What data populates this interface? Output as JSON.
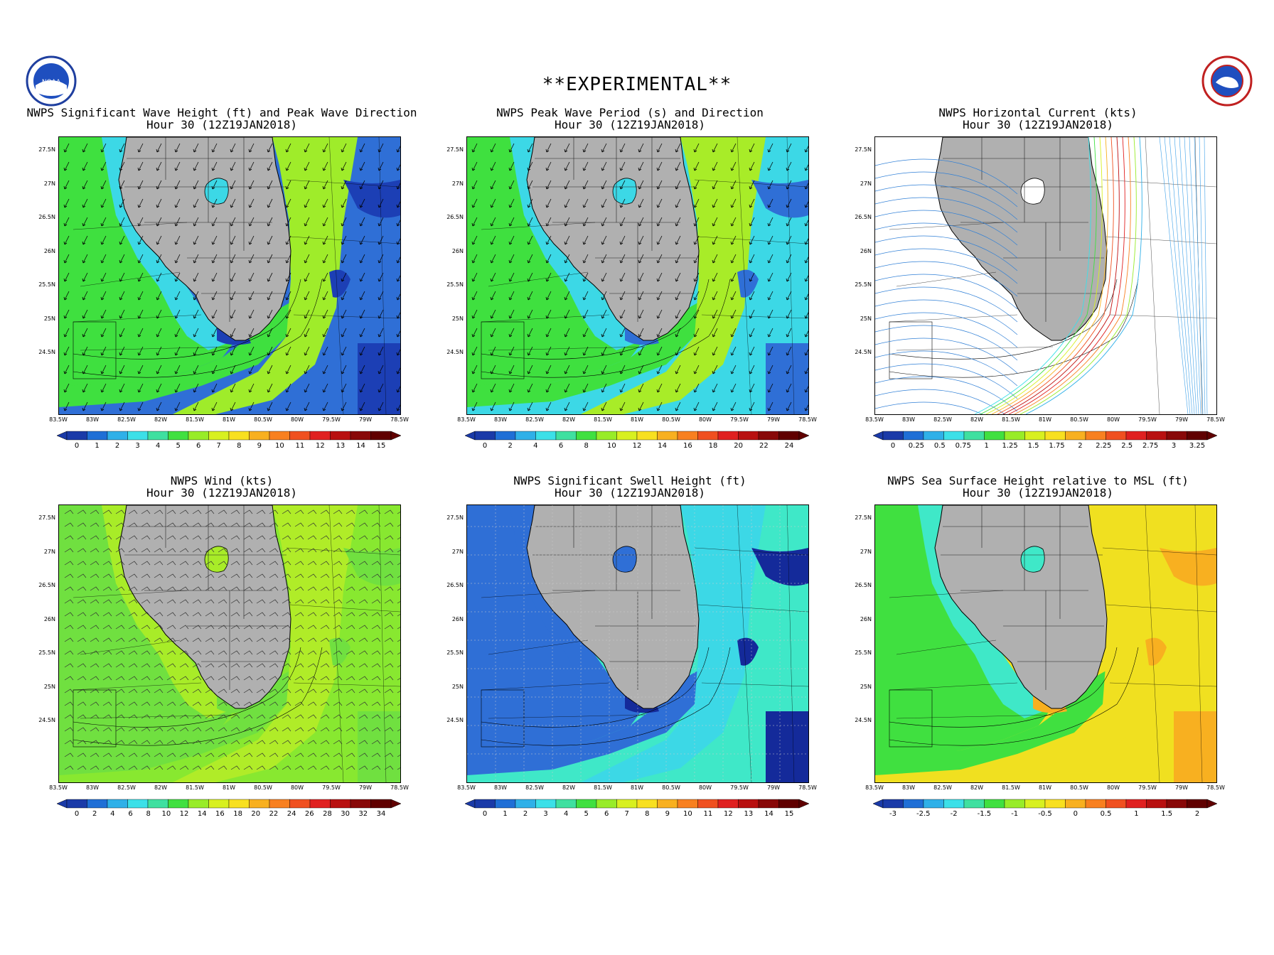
{
  "header": {
    "banner": "**EXPERIMENTAL**",
    "noaa_logo_text": "NOAA",
    "nws_logo_text": "NATIONAL WEATHER SERVICE"
  },
  "axes": {
    "lat_labels": [
      "27.5N",
      "27N",
      "26.5N",
      "26N",
      "25.5N",
      "25N",
      "24.5N"
    ],
    "lon_labels": [
      "83.5W",
      "83W",
      "82.5W",
      "82W",
      "81.5W",
      "81W",
      "80.5W",
      "80W",
      "79.5W",
      "79W",
      "78.5W"
    ]
  },
  "panels": [
    {
      "id": "wave-height",
      "title1": "NWPS Significant Wave Height (ft) and Peak Wave Direction",
      "title2": "Hour 30 (12Z19JAN2018)",
      "overlay": "arrows",
      "colors": {
        "offshore": "#2f6fd6",
        "mid": "#3cd8e6",
        "gulf": "#3fe03f",
        "stream": "#9fec2a",
        "deep": "#1c3fb5"
      },
      "colorbar": {
        "labels": [
          "0",
          "1",
          "2",
          "3",
          "4",
          "5",
          "6",
          "7",
          "8",
          "9",
          "10",
          "11",
          "12",
          "13",
          "14",
          "15"
        ],
        "colors": [
          "#1a3aa8",
          "#1f6fd6",
          "#2fb0e8",
          "#3ce0e8",
          "#3fe0a0",
          "#40e040",
          "#98ec28",
          "#d8f020",
          "#f8e020",
          "#f8b020",
          "#f88020",
          "#f05020",
          "#e02020",
          "#b81010",
          "#880808",
          "#600000"
        ]
      }
    },
    {
      "id": "wave-period",
      "title1": "NWPS Peak Wave Period (s) and Direction",
      "title2": "Hour 30 (12Z19JAN2018)",
      "overlay": "arrows",
      "colors": {
        "offshore": "#3cd8e6",
        "mid": "#3cd8e6",
        "gulf": "#3fe03f",
        "stream": "#a8ec28",
        "deep": "#2f6fd6"
      },
      "colorbar": {
        "labels": [
          "0",
          "2",
          "4",
          "6",
          "8",
          "10",
          "12",
          "14",
          "16",
          "18",
          "20",
          "22",
          "24"
        ],
        "colors": [
          "#1a3aa8",
          "#1f6fd6",
          "#2fb0e8",
          "#3ce0e8",
          "#3fe0a0",
          "#40e040",
          "#98ec28",
          "#d8f020",
          "#f8e020",
          "#f8b020",
          "#f88020",
          "#f05020",
          "#e02020",
          "#b81010",
          "#880808",
          "#600000"
        ]
      }
    },
    {
      "id": "current",
      "title1": "NWPS Horizontal Current (kts)",
      "title2": "Hour 30 (12Z19JAN2018)",
      "overlay": "streamlines",
      "colors": {
        "offshore": "#ffffff",
        "mid": "#ffffff",
        "gulf": "#ffffff",
        "stream": "#ffffff",
        "deep": "#ffffff"
      },
      "colorbar": {
        "labels": [
          "0",
          "0.25",
          "0.5",
          "0.75",
          "1",
          "1.25",
          "1.5",
          "1.75",
          "2",
          "2.25",
          "2.5",
          "2.75",
          "3",
          "3.25"
        ],
        "colors": [
          "#1a3aa8",
          "#1f6fd6",
          "#2fb0e8",
          "#3ce0e8",
          "#3fe0a0",
          "#40e040",
          "#98ec28",
          "#d8f020",
          "#f8e020",
          "#f8b020",
          "#f88020",
          "#f05020",
          "#e02020",
          "#b81010",
          "#880808",
          "#600000"
        ]
      }
    },
    {
      "id": "wind",
      "title1": "NWPS Wind (kts)",
      "title2": "Hour 30 (12Z19JAN2018)",
      "overlay": "barbs",
      "colors": {
        "offshore": "#88e830",
        "mid": "#a8ec28",
        "gulf": "#70e040",
        "stream": "#b0ec28",
        "deep": "#70e040"
      },
      "colorbar": {
        "labels": [
          "0",
          "2",
          "4",
          "6",
          "8",
          "10",
          "12",
          "14",
          "16",
          "18",
          "20",
          "22",
          "24",
          "26",
          "28",
          "30",
          "32",
          "34"
        ],
        "colors": [
          "#1a3aa8",
          "#1f6fd6",
          "#2fb0e8",
          "#3ce0e8",
          "#3fe0a0",
          "#40e040",
          "#98ec28",
          "#d8f020",
          "#f8e020",
          "#f8b020",
          "#f88020",
          "#f05020",
          "#e02020",
          "#b81010",
          "#880808",
          "#600000"
        ]
      }
    },
    {
      "id": "swell",
      "title1": "NWPS Significant Swell Height (ft)",
      "title2": "Hour 30 (12Z19JAN2018)",
      "overlay": "grid",
      "colors": {
        "offshore": "#3fe8c8",
        "mid": "#2f6fd6",
        "gulf": "#2f6fd6",
        "stream": "#3cd8e6",
        "deep": "#142a9a"
      },
      "colorbar": {
        "labels": [
          "0",
          "1",
          "2",
          "3",
          "4",
          "5",
          "6",
          "7",
          "8",
          "9",
          "10",
          "11",
          "12",
          "13",
          "14",
          "15"
        ],
        "colors": [
          "#1a3aa8",
          "#1f6fd6",
          "#2fb0e8",
          "#3ce0e8",
          "#3fe0a0",
          "#40e040",
          "#98ec28",
          "#d8f020",
          "#f8e020",
          "#f8b020",
          "#f88020",
          "#f05020",
          "#e02020",
          "#b81010",
          "#880808",
          "#600000"
        ]
      }
    },
    {
      "id": "ssh",
      "title1": "NWPS Sea Surface Height relative to MSL (ft)",
      "title2": "Hour 30 (12Z19JAN2018)",
      "overlay": "none",
      "colors": {
        "offshore": "#f0e020",
        "mid": "#3fe8c8",
        "gulf": "#40e040",
        "stream": "#f0e020",
        "deep": "#f8b020"
      },
      "colorbar": {
        "labels": [
          "-3",
          "-2.5",
          "-2",
          "-1.5",
          "-1",
          "-0.5",
          "0",
          "0.5",
          "1",
          "1.5",
          "2"
        ],
        "colors": [
          "#1a3aa8",
          "#1f6fd6",
          "#2fb0e8",
          "#3ce0e8",
          "#3fe0a0",
          "#40e040",
          "#98ec28",
          "#d8f020",
          "#f8e020",
          "#f8b020",
          "#f88020",
          "#f05020",
          "#e02020",
          "#b81010",
          "#880808",
          "#600000"
        ]
      }
    }
  ]
}
